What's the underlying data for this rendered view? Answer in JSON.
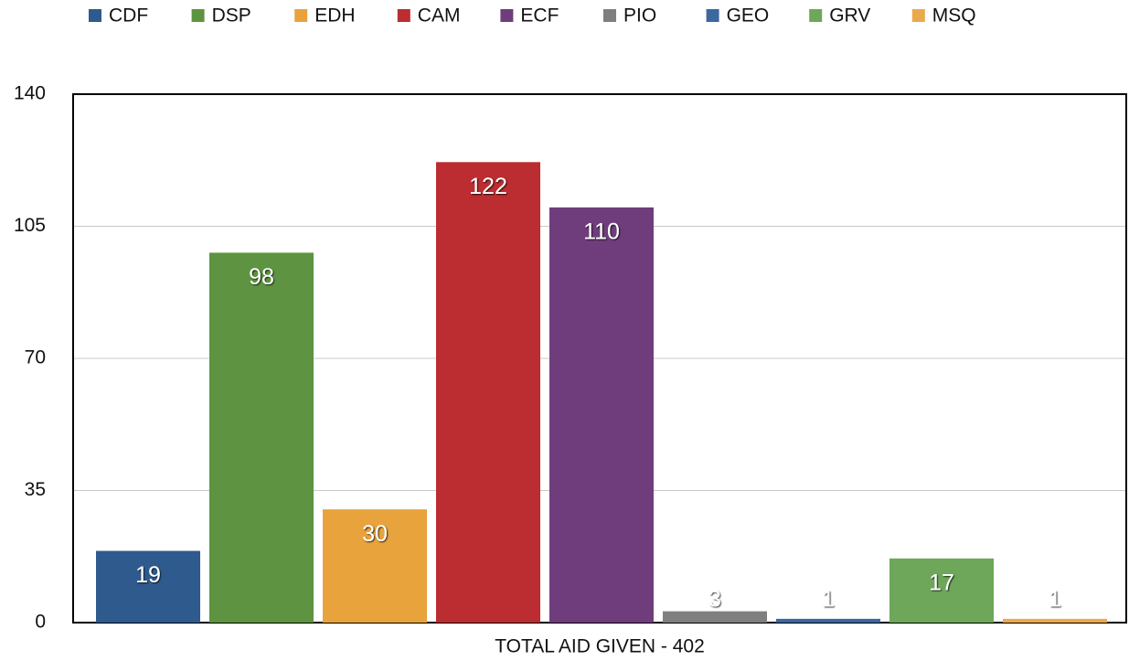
{
  "chart_data": {
    "type": "bar",
    "x_label": "TOTAL AID GIVEN - 402",
    "series": [
      {
        "name": "CDF",
        "color": "#2f5a8e",
        "values": [
          19
        ]
      },
      {
        "name": "DSP",
        "color": "#5e9441",
        "values": [
          98
        ]
      },
      {
        "name": "EDH",
        "color": "#e8a33c",
        "values": [
          30
        ]
      },
      {
        "name": "CAM",
        "color": "#bb2d30",
        "values": [
          122
        ]
      },
      {
        "name": "ECF",
        "color": "#6f3d7b",
        "values": [
          110
        ]
      },
      {
        "name": "PIO",
        "color": "#7f7f7f",
        "values": [
          3
        ]
      },
      {
        "name": "GEO",
        "color": "#3c67a0",
        "values": [
          1
        ]
      },
      {
        "name": "GRV",
        "color": "#6ea75a",
        "values": [
          17
        ]
      },
      {
        "name": "MSQ",
        "color": "#eba94e",
        "values": [
          1
        ]
      }
    ],
    "ylim": [
      0,
      140
    ],
    "yticks": [
      0,
      35,
      70,
      105,
      140
    ],
    "grid": true,
    "legend": "top"
  }
}
